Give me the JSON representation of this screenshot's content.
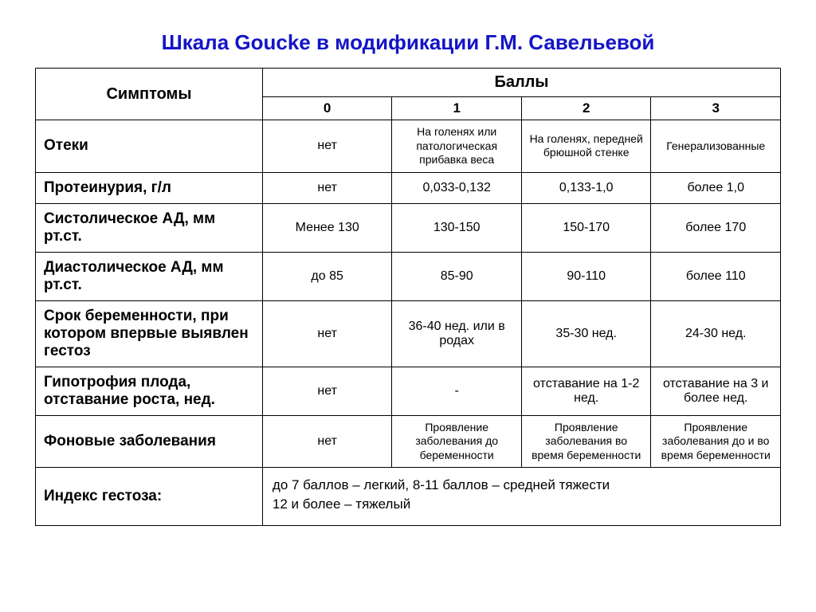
{
  "title": "Шкала Goucke в модификации  Г.М. Савельевой",
  "header": {
    "symptoms": "Симптомы",
    "scores_label": "Баллы",
    "scores": [
      "0",
      "1",
      "2",
      "3"
    ]
  },
  "rows": [
    {
      "label": "Отеки",
      "cells": [
        {
          "text": "нет",
          "small": false
        },
        {
          "text": "На голенях или патологическая прибавка веса",
          "small": true
        },
        {
          "text": "На голенях, передней брюшной стенке",
          "small": true
        },
        {
          "text": "Генерализованные",
          "small": true
        }
      ]
    },
    {
      "label": "Протеинурия,   г/л",
      "cells": [
        {
          "text": "нет",
          "small": false
        },
        {
          "text": "0,033-0,132",
          "small": false
        },
        {
          "text": "0,133-1,0",
          "small": false
        },
        {
          "text": "более 1,0",
          "small": false
        }
      ]
    },
    {
      "label": "Систолическое АД, мм рт.ст.",
      "cells": [
        {
          "text": "Менее 130",
          "small": false
        },
        {
          "text": "130-150",
          "small": false
        },
        {
          "text": "150-170",
          "small": false
        },
        {
          "text": "более 170",
          "small": false
        }
      ]
    },
    {
      "label": "Диастолическое АД, мм  рт.ст.",
      "cells": [
        {
          "text": "до 85",
          "small": false
        },
        {
          "text": "85-90",
          "small": false
        },
        {
          "text": "90-110",
          "small": false
        },
        {
          "text": "более 110",
          "small": false
        }
      ]
    },
    {
      "label": "Срок беременности, при котором впервые выявлен гестоз",
      "cells": [
        {
          "text": "нет",
          "small": false
        },
        {
          "text": "36-40 нед. или в родах",
          "small": false
        },
        {
          "text": "35-30 нед.",
          "small": false
        },
        {
          "text": "24-30 нед.",
          "small": false
        }
      ]
    },
    {
      "label": "Гипотрофия плода, отставание роста, нед.",
      "cells": [
        {
          "text": "нет",
          "small": false
        },
        {
          "text": "-",
          "small": false
        },
        {
          "text": "отставание на 1-2 нед.",
          "small": false
        },
        {
          "text": "отставание на 3 и более нед.",
          "small": false
        }
      ]
    },
    {
      "label": "Фоновые заболевания",
      "cells": [
        {
          "text": "нет",
          "small": false
        },
        {
          "text": "Проявление заболевания до беременности",
          "small": true
        },
        {
          "text": "Проявление заболевания во время беременности",
          "small": true
        },
        {
          "text": "Проявление заболевания до и во время беременности",
          "small": true
        }
      ]
    }
  ],
  "index": {
    "label": "Индекс гестоза:",
    "line1": "до 7 баллов – легкий,  8-11 баллов – средней тяжести",
    "line2": "12 и более – тяжелый"
  },
  "colors": {
    "title": "#1414c8",
    "border": "#000000",
    "text": "#000000",
    "background": "#ffffff"
  }
}
